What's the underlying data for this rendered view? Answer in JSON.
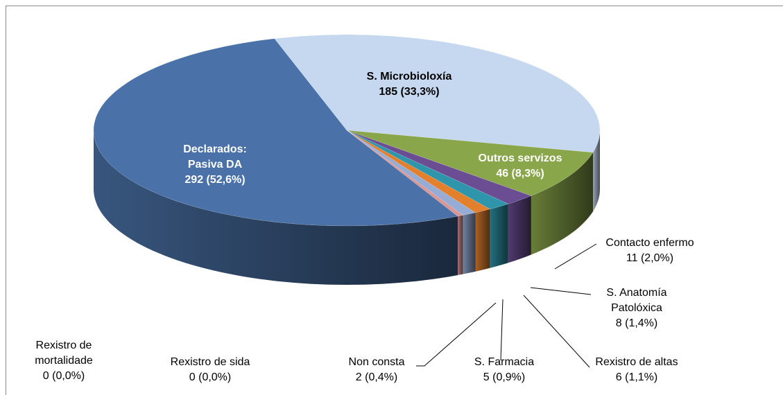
{
  "chart_data": {
    "type": "pie3d",
    "categories": [
      "Declarados: Pasiva DA",
      "S. Microbioloxía",
      "Outros servizos",
      "Contacto enfermo",
      "S. Anatomía Patolóxica",
      "Rexistro de altas",
      "S. Farmacia",
      "Non consta",
      "Rexistro de sida",
      "Rexistro de mortalidade"
    ],
    "values": [
      292,
      185,
      46,
      11,
      8,
      6,
      5,
      2,
      0,
      0
    ],
    "value_labels": [
      "292 (52,6%)",
      "185 (33,3%)",
      "46 (8,3%)",
      "11 (2,0%)",
      "8 (1,4%)",
      "6 (1,1%)",
      "5 (0,9%)",
      "2 (0,4%)",
      "0 (0,0%)",
      "0 (0,0%)"
    ],
    "colors": [
      "#4a72a8",
      "#c6d8ef",
      "#8aa64a",
      "#6b4d94",
      "#2f95aa",
      "#e2802e",
      "#96acd4",
      "#d99694",
      "#9bbb59",
      "#4bacc6"
    ]
  }
}
